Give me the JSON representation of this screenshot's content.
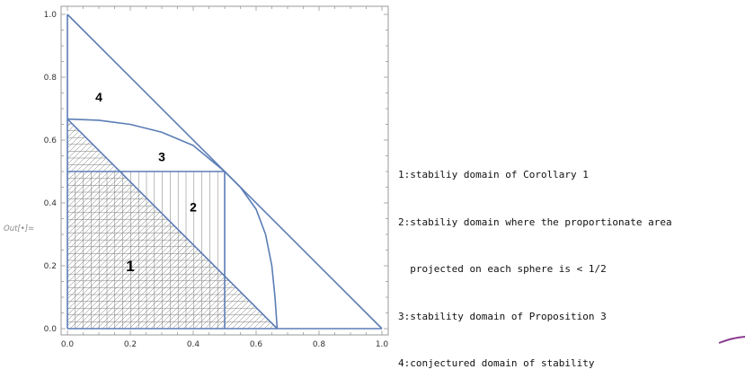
{
  "cell": {
    "out_label": "Out[•]="
  },
  "chart_data": {
    "type": "line",
    "xlim": [
      0,
      1
    ],
    "ylim": [
      0,
      1
    ],
    "x_ticks": [
      0.0,
      0.2,
      0.4,
      0.6,
      0.8,
      1.0
    ],
    "y_ticks": [
      0.0,
      0.2,
      0.4,
      0.6,
      0.8,
      1.0
    ],
    "x_tick_labels": [
      "0.0",
      "0.2",
      "0.4",
      "0.6",
      "0.8",
      "1.0"
    ],
    "y_tick_labels": [
      "0.0",
      "0.2",
      "0.4",
      "0.6",
      "0.8",
      "1.0"
    ],
    "grid": false,
    "region_labels": [
      {
        "text": "1",
        "x": 0.2,
        "y": 0.2
      },
      {
        "text": "2",
        "x": 0.4,
        "y": 0.39
      },
      {
        "text": "3",
        "x": 0.3,
        "y": 0.55
      },
      {
        "text": "4",
        "x": 0.1,
        "y": 0.74
      }
    ],
    "series": [
      {
        "points": [
          [
            0,
            0.667
          ],
          [
            0.667,
            0
          ]
        ]
      },
      {
        "points": [
          [
            0,
            0.5
          ],
          [
            0.5,
            0.5
          ],
          [
            0.5,
            0
          ]
        ]
      },
      {
        "points": [
          [
            0,
            1
          ],
          [
            1,
            0
          ]
        ]
      },
      {
        "points": [
          [
            0,
            0
          ],
          [
            0,
            1
          ]
        ]
      },
      {
        "points": [
          [
            0,
            0
          ],
          [
            1,
            0
          ]
        ]
      },
      {
        "points": [
          [
            0,
            0.667
          ],
          [
            0.1,
            0.663
          ],
          [
            0.2,
            0.65
          ],
          [
            0.3,
            0.625
          ],
          [
            0.4,
            0.583
          ],
          [
            0.5,
            0.5
          ],
          [
            0.55,
            0.45
          ],
          [
            0.6,
            0.38
          ],
          [
            0.63,
            0.3
          ],
          [
            0.65,
            0.2
          ],
          [
            0.66,
            0.1
          ],
          [
            0.667,
            0
          ]
        ]
      }
    ],
    "hatch_regions": [
      {
        "pattern": "diagonal",
        "polygon": [
          [
            0,
            0
          ],
          [
            0.667,
            0
          ],
          [
            0,
            0.667
          ]
        ]
      },
      {
        "pattern": "horizontal",
        "polygon": [
          [
            0,
            0
          ],
          [
            0.667,
            0
          ],
          [
            0,
            0.667
          ]
        ]
      },
      {
        "pattern": "vertical",
        "polygon": [
          [
            0,
            0
          ],
          [
            0.5,
            0
          ],
          [
            0.5,
            0.5
          ],
          [
            0,
            0.5
          ]
        ]
      }
    ]
  },
  "legend": {
    "lines": [
      "1:stabiliy domain of Corollary 1",
      "2:stabiliy domain where the proportionate area",
      "  projected on each sphere is < 1/2",
      "3:stability domain of Proposition 3",
      "4:conjectured domain of stability"
    ]
  },
  "colors": {
    "curve": "#5b7db5",
    "hatch": "#7a7a7a",
    "frame": "#9a9a9a",
    "tick_text": "#333333",
    "corner_mark": "#8b3a8f"
  }
}
